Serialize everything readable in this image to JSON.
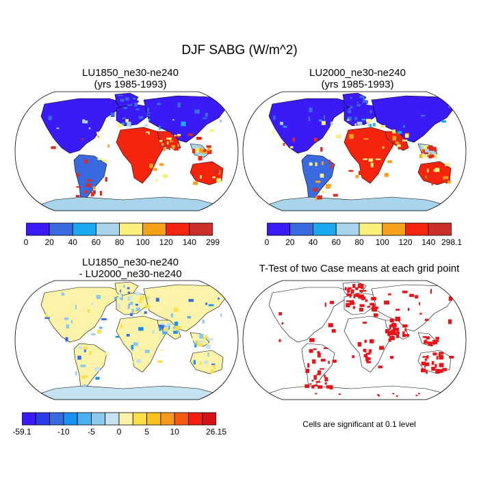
{
  "figure": {
    "title": "DJF SABG (W/m^2)"
  },
  "panels": [
    {
      "id": "lu1850",
      "title_lines": [
        "LU1850_ne30-ne240",
        "(yrs 1985-1993)"
      ],
      "colorbar": {
        "labels": [
          "0",
          "20",
          "40",
          "60",
          "80",
          "100",
          "120",
          "140",
          "299"
        ],
        "colors": [
          "#3a1af5",
          "#3a6ae0",
          "#1aa8f0",
          "#a8d4ec",
          "#fbee7a",
          "#f7a11a",
          "#f5240f",
          "#cc2e2a"
        ]
      }
    },
    {
      "id": "lu2000",
      "title_lines": [
        "LU2000_ne30-ne240",
        "(yrs 1985-1993)"
      ],
      "colorbar": {
        "labels": [
          "0",
          "20",
          "40",
          "60",
          "80",
          "100",
          "120",
          "140",
          "298.1"
        ],
        "colors": [
          "#3a1af5",
          "#3a6ae0",
          "#1aa8f0",
          "#a8d4ec",
          "#fbee7a",
          "#f7a11a",
          "#f5240f",
          "#cc2e2a"
        ]
      }
    },
    {
      "id": "diff",
      "title_lines": [
        "LU1850_ne30-ne240",
        "- LU2000_ne30-ne240"
      ],
      "colorbar": {
        "labels": [
          "-59.1",
          "",
          "",
          "-10",
          "",
          "-5",
          "",
          "0",
          "",
          "5",
          "",
          "10",
          "",
          "",
          "26.15"
        ],
        "colors": [
          "#3a1af5",
          "#2a3ce8",
          "#3a6ae0",
          "#1a90f0",
          "#4ab0f0",
          "#8cc8ec",
          "#c4e2f0",
          "#fbf4a8",
          "#fbe04a",
          "#f9c21a",
          "#f79a1a",
          "#f55a0f",
          "#f51e0f",
          "#d41414"
        ]
      }
    },
    {
      "id": "ttest",
      "title_lines": [
        "T-Test of two Case means at each grid point"
      ],
      "note": "Cells are significant at 0.1 level",
      "marker_color": "#e8141a"
    }
  ]
}
